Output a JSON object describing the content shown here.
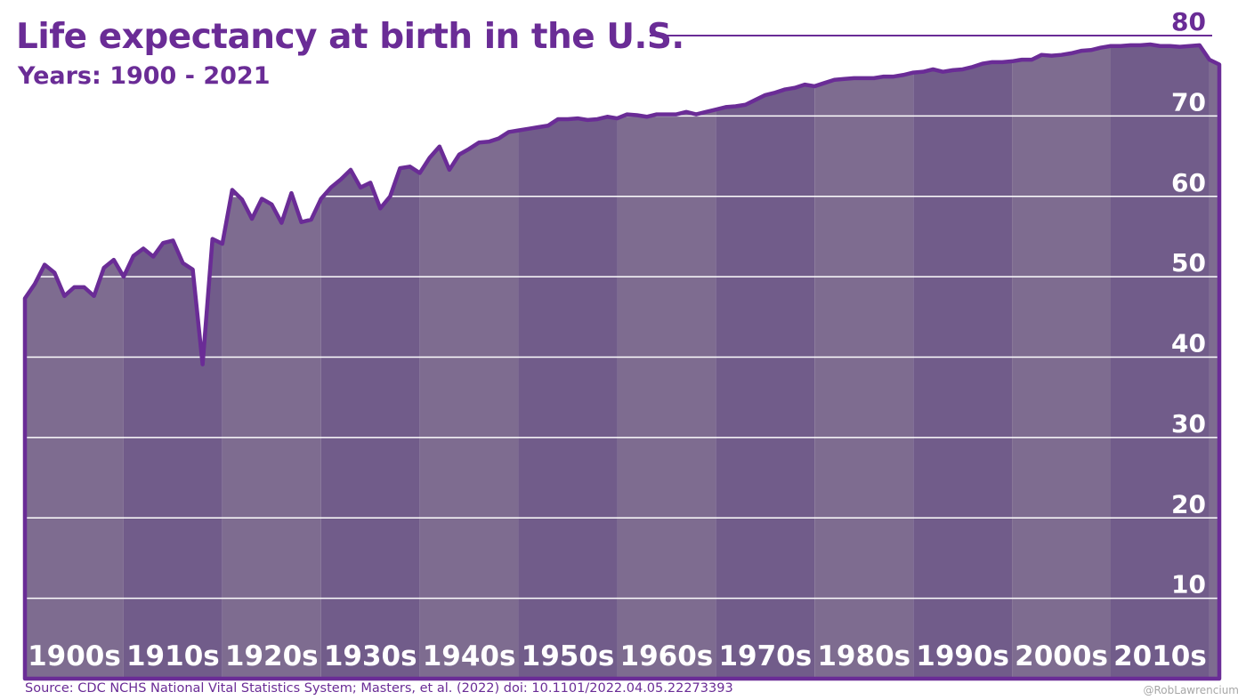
{
  "chart_data": {
    "type": "area",
    "title": "Life expectancy at birth in the U.S.",
    "subtitle": "Years: 1900 - 2021",
    "x": [
      1900,
      1901,
      1902,
      1903,
      1904,
      1905,
      1906,
      1907,
      1908,
      1909,
      1910,
      1911,
      1912,
      1913,
      1914,
      1915,
      1916,
      1917,
      1918,
      1919,
      1920,
      1921,
      1922,
      1923,
      1924,
      1925,
      1926,
      1927,
      1928,
      1929,
      1930,
      1931,
      1932,
      1933,
      1934,
      1935,
      1936,
      1937,
      1938,
      1939,
      1940,
      1941,
      1942,
      1943,
      1944,
      1945,
      1946,
      1947,
      1948,
      1949,
      1950,
      1951,
      1952,
      1953,
      1954,
      1955,
      1956,
      1957,
      1958,
      1959,
      1960,
      1961,
      1962,
      1963,
      1964,
      1965,
      1966,
      1967,
      1968,
      1969,
      1970,
      1971,
      1972,
      1973,
      1974,
      1975,
      1976,
      1977,
      1978,
      1979,
      1980,
      1981,
      1982,
      1983,
      1984,
      1985,
      1986,
      1987,
      1988,
      1989,
      1990,
      1991,
      1992,
      1993,
      1994,
      1995,
      1996,
      1997,
      1998,
      1999,
      2000,
      2001,
      2002,
      2003,
      2004,
      2005,
      2006,
      2007,
      2008,
      2009,
      2010,
      2011,
      2012,
      2013,
      2014,
      2015,
      2016,
      2017,
      2018,
      2019,
      2020,
      2021
    ],
    "values": [
      47.3,
      49.1,
      51.5,
      50.5,
      47.6,
      48.7,
      48.7,
      47.6,
      51.1,
      52.1,
      50.0,
      52.6,
      53.5,
      52.5,
      54.2,
      54.5,
      51.7,
      50.9,
      39.1,
      54.7,
      54.1,
      60.8,
      59.6,
      57.2,
      59.7,
      59.0,
      56.7,
      60.4,
      56.8,
      57.1,
      59.7,
      61.1,
      62.1,
      63.3,
      61.1,
      61.7,
      58.5,
      60.0,
      63.5,
      63.7,
      62.9,
      64.8,
      66.2,
      63.3,
      65.2,
      65.9,
      66.7,
      66.8,
      67.2,
      68.0,
      68.2,
      68.4,
      68.6,
      68.8,
      69.6,
      69.6,
      69.7,
      69.5,
      69.6,
      69.9,
      69.7,
      70.2,
      70.1,
      69.9,
      70.2,
      70.2,
      70.2,
      70.5,
      70.2,
      70.5,
      70.8,
      71.1,
      71.2,
      71.4,
      72.0,
      72.6,
      72.9,
      73.3,
      73.5,
      73.9,
      73.7,
      74.1,
      74.5,
      74.6,
      74.7,
      74.7,
      74.7,
      74.9,
      74.9,
      75.1,
      75.4,
      75.5,
      75.8,
      75.5,
      75.7,
      75.8,
      76.1,
      76.5,
      76.7,
      76.7,
      76.8,
      77.0,
      77.0,
      77.6,
      77.5,
      77.6,
      77.8,
      78.1,
      78.2,
      78.5,
      78.7,
      78.7,
      78.8,
      78.8,
      78.9,
      78.7,
      78.7,
      78.6,
      78.7,
      78.8,
      77.0,
      76.4
    ],
    "ylim": [
      0,
      80
    ],
    "yticks": [
      "10",
      "20",
      "30",
      "40",
      "50",
      "60",
      "70",
      "80"
    ],
    "decade_labels": [
      "1900s",
      "1910s",
      "1920s",
      "1930s",
      "1940s",
      "1950s",
      "1960s",
      "1970s",
      "1980s",
      "1990s",
      "2000s",
      "2010s"
    ],
    "colors": {
      "line": "#6a2c96",
      "band_light": "#7e6c90",
      "band_dark": "#715c8a",
      "grid": "#ffffff",
      "title": "#6a2c96"
    }
  },
  "footer": {
    "source": "Source: CDC NCHS National Vital Statistics System; Masters, et al. (2022) doi: 10.1101/2022.04.05.22273393",
    "credit": "@RobLawrencium"
  }
}
